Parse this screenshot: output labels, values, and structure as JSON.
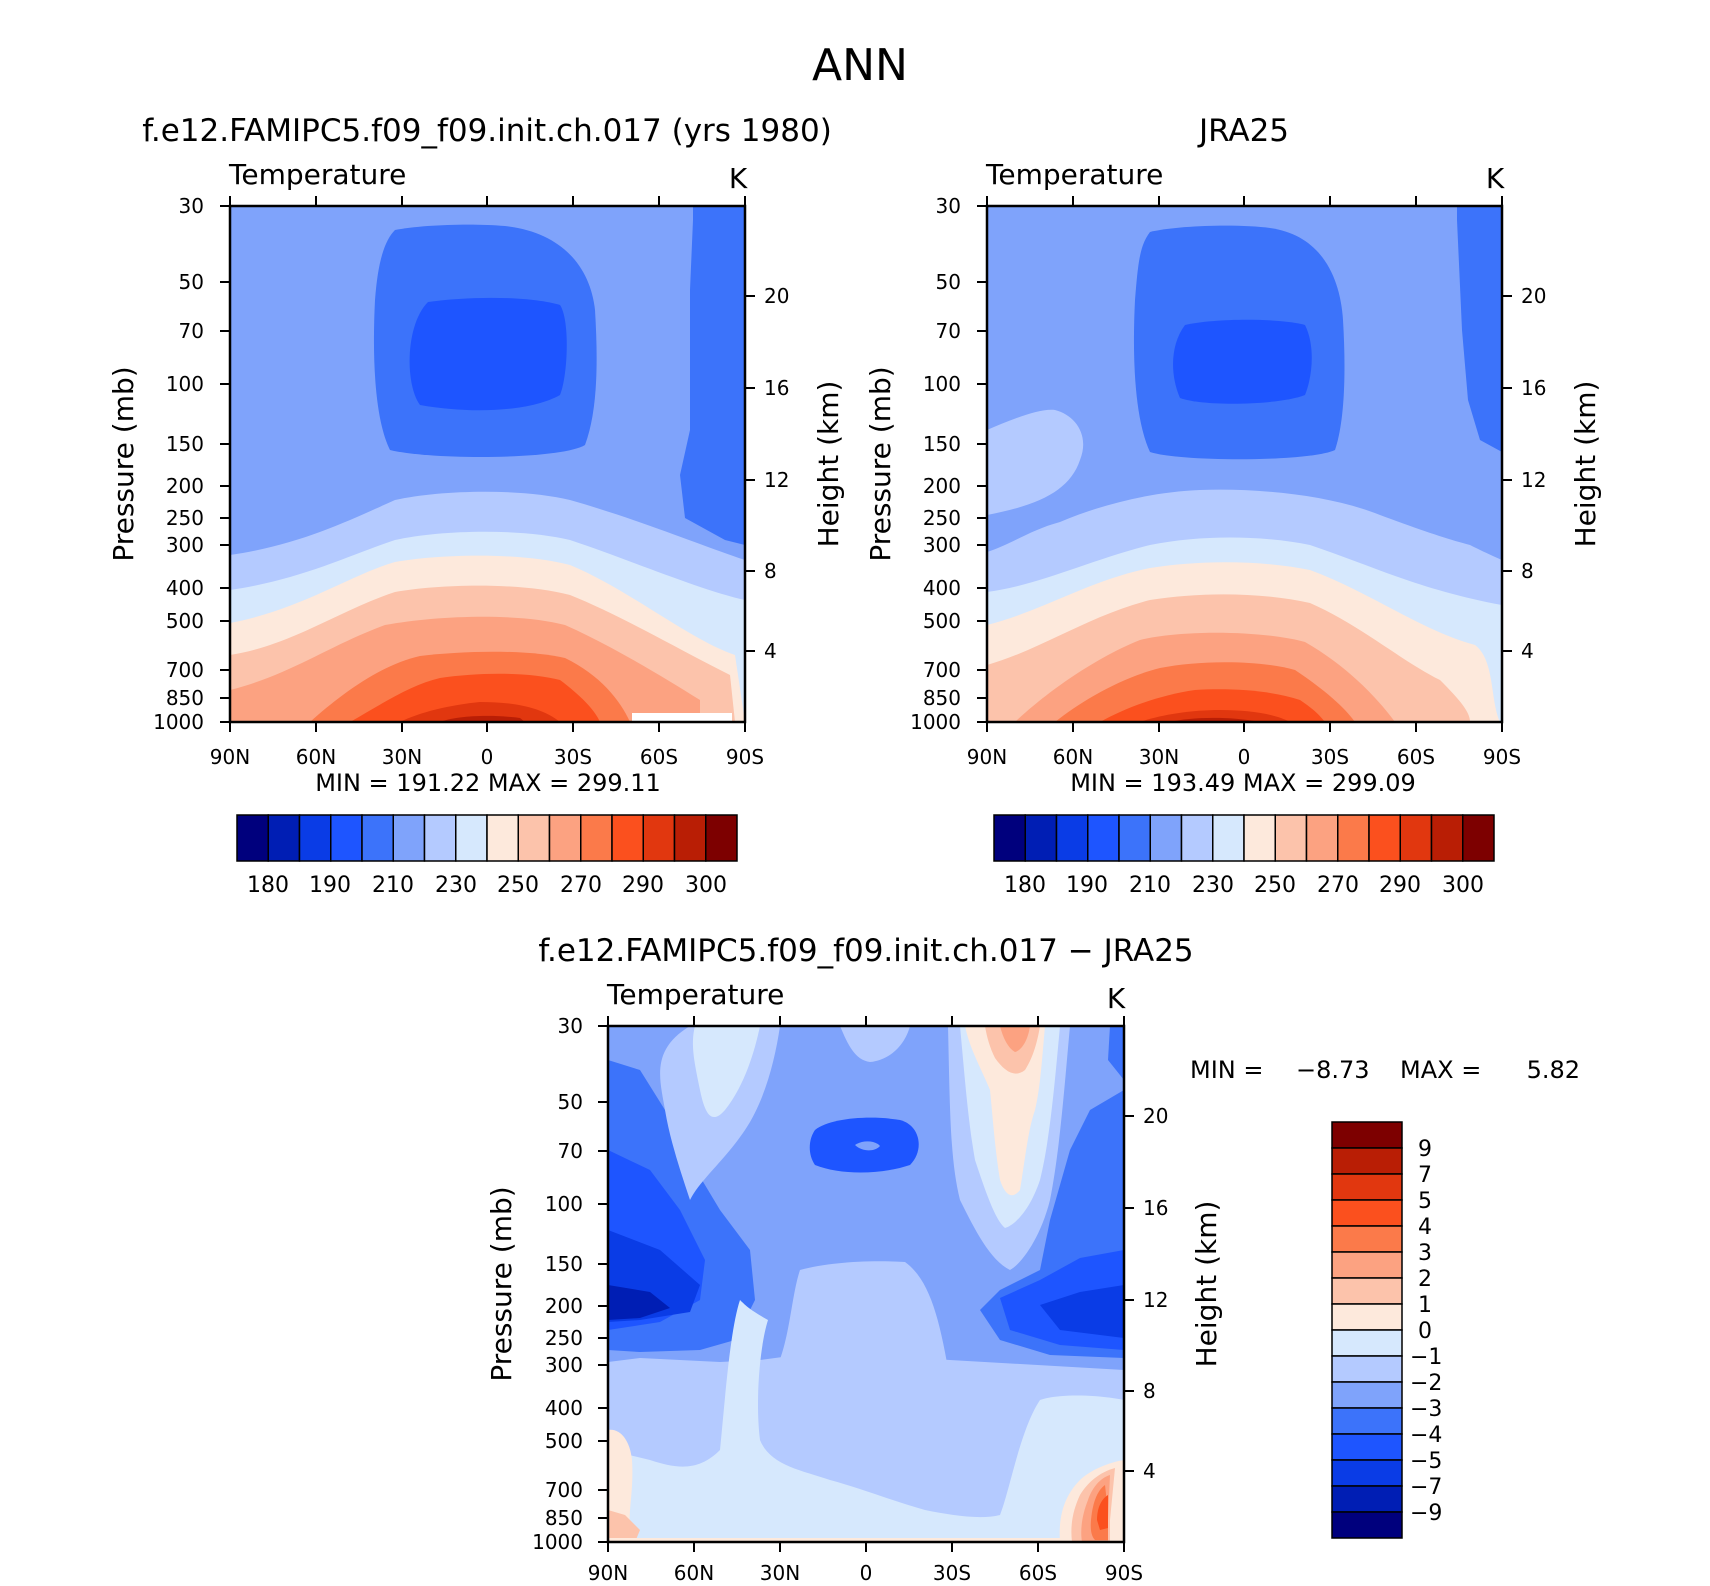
{
  "page_title": "ANN",
  "chart_data": [
    {
      "type": "contour",
      "panel": "model",
      "title": "f.e12.FAMIPC5.f09_f09.init.ch.017 (yrs 1980)",
      "variable": "Temperature",
      "units": "K",
      "ylabel": "Pressure (mb)",
      "ylabel_right": "Height (km)",
      "x_ticks": [
        "90N",
        "60N",
        "30N",
        "0",
        "30S",
        "60S",
        "90S"
      ],
      "y_ticks": [
        "30",
        "50",
        "70",
        "100",
        "150",
        "200",
        "250",
        "300",
        "400",
        "500",
        "700",
        "850",
        "1000"
      ],
      "y_ticks_right": [
        "20",
        "16",
        "12",
        "8",
        "4"
      ],
      "stats": "MIN = 191.22 MAX = 299.11",
      "colorbar": {
        "labels": [
          "180",
          "190",
          "210",
          "230",
          "250",
          "270",
          "290",
          "300"
        ],
        "colors": [
          "#00007d",
          "#001eb4",
          "#0a3ce6",
          "#1e55ff",
          "#3c73fa",
          "#7fa3fb",
          "#b4caff",
          "#d6e8fd",
          "#fde9dc",
          "#fcc3ab",
          "#fca281",
          "#fb7a4a",
          "#fb501e",
          "#e1370f",
          "#b91e05",
          "#7d0000"
        ]
      }
    },
    {
      "type": "contour",
      "panel": "obs",
      "title": "JRA25",
      "variable": "Temperature",
      "units": "K",
      "ylabel": "Pressure (mb)",
      "ylabel_right": "Height (km)",
      "x_ticks": [
        "90N",
        "60N",
        "30N",
        "0",
        "30S",
        "60S",
        "90S"
      ],
      "y_ticks": [
        "30",
        "50",
        "70",
        "100",
        "150",
        "200",
        "250",
        "300",
        "400",
        "500",
        "700",
        "850",
        "1000"
      ],
      "y_ticks_right": [
        "20",
        "16",
        "12",
        "8",
        "4"
      ],
      "stats": "MIN = 193.49 MAX = 299.09",
      "colorbar": {
        "labels": [
          "180",
          "190",
          "210",
          "230",
          "250",
          "270",
          "290",
          "300"
        ],
        "colors": [
          "#00007d",
          "#001eb4",
          "#0a3ce6",
          "#1e55ff",
          "#3c73fa",
          "#7fa3fb",
          "#b4caff",
          "#d6e8fd",
          "#fde9dc",
          "#fcc3ab",
          "#fca281",
          "#fb7a4a",
          "#fb501e",
          "#e1370f",
          "#b91e05",
          "#7d0000"
        ]
      }
    },
    {
      "type": "contour",
      "panel": "difference",
      "title": "f.e12.FAMIPC5.f09_f09.init.ch.017 − JRA25",
      "variable": "Temperature",
      "units": "K",
      "ylabel": "Pressure (mb)",
      "ylabel_right": "Height (km)",
      "x_ticks": [
        "90N",
        "60N",
        "30N",
        "0",
        "30S",
        "60S",
        "90S"
      ],
      "y_ticks": [
        "30",
        "50",
        "70",
        "100",
        "150",
        "200",
        "250",
        "300",
        "400",
        "500",
        "700",
        "850",
        "1000"
      ],
      "y_ticks_right": [
        "20",
        "16",
        "12",
        "8",
        "4"
      ],
      "stats_min_label": "MIN =",
      "stats_min": "−8.73",
      "stats_max_label": "MAX =",
      "stats_max": "5.82",
      "colorbar": {
        "labels": [
          "9",
          "7",
          "5",
          "4",
          "3",
          "2",
          "1",
          "0",
          "−1",
          "−2",
          "−3",
          "−4",
          "−5",
          "−7",
          "−9"
        ],
        "colors": [
          "#7d0000",
          "#b91e05",
          "#e1370f",
          "#fb501e",
          "#fb7a4a",
          "#fca281",
          "#fcc3ab",
          "#fde9dc",
          "#d6e8fd",
          "#b4caff",
          "#7fa3fb",
          "#3c73fa",
          "#1e55ff",
          "#0a3ce6",
          "#001eb4",
          "#00007d"
        ]
      }
    }
  ]
}
